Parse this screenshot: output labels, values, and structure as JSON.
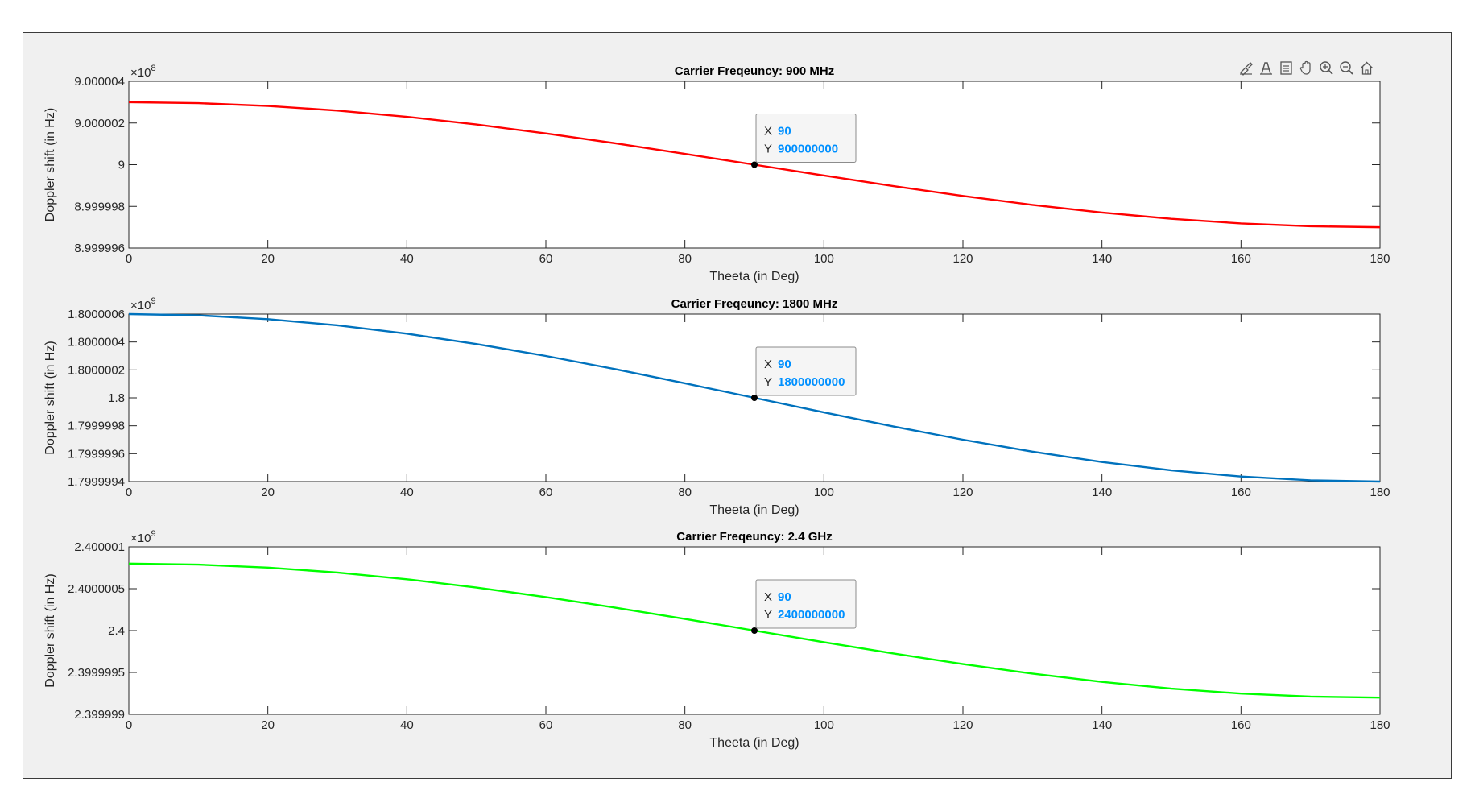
{
  "toolbar": {
    "icons": [
      "brush-icon",
      "data-tips-icon",
      "restore-view-icon",
      "pan-icon",
      "zoom-in-icon",
      "zoom-out-icon",
      "home-icon"
    ]
  },
  "colors": {
    "figure_bg": "#f0f0f0",
    "axes_bg": "#ffffff",
    "series": [
      "#ff0000",
      "#0072bd",
      "#00ff00"
    ],
    "datatip_value": "#0090ff"
  },
  "chart_data": [
    {
      "type": "line",
      "title": "Carrier Freqeuncy: 900 MHz",
      "xlabel": "Theeta (in Deg)",
      "ylabel": "Doppler shift (in Hz)",
      "exponent_label": "×10^8",
      "exponent_base": "×10",
      "exponent_power": "8",
      "xlim": [
        0,
        180
      ],
      "ylim": [
        899999600,
        900000400
      ],
      "xticks": [
        0,
        20,
        40,
        60,
        80,
        100,
        120,
        140,
        160,
        180
      ],
      "yticks": [
        899999600,
        899999800,
        900000000,
        900000200,
        900000400
      ],
      "ytick_labels": [
        "8.999996",
        "8.999998",
        "9",
        "9.000002",
        "9.000004"
      ],
      "grid": false,
      "series": [
        {
          "color": "#ff0000",
          "x": [
            0,
            10,
            20,
            30,
            40,
            50,
            60,
            70,
            80,
            90,
            100,
            110,
            120,
            130,
            140,
            150,
            160,
            170,
            180
          ],
          "y": [
            900000300,
            900000295.4,
            900000281.9,
            900000259.8,
            900000229.8,
            900000192.8,
            900000150,
            900000102.6,
            900000052.1,
            900000000,
            899999947.9,
            899999897.4,
            899999850,
            899999807.2,
            899999770.2,
            899999740.2,
            899999718.1,
            899999704.6,
            899999700
          ]
        }
      ],
      "datatip": {
        "x_label": "X",
        "x_value": "90",
        "y_label": "Y",
        "y_value": "900000000",
        "x": 90,
        "y": 900000000
      }
    },
    {
      "type": "line",
      "title": "Carrier Freqeuncy: 1800 MHz",
      "xlabel": "Theeta (in Deg)",
      "ylabel": "Doppler shift (in Hz)",
      "exponent_label": "×10^9",
      "exponent_base": "×10",
      "exponent_power": "9",
      "xlim": [
        0,
        180
      ],
      "ylim": [
        1799999400,
        1800000600
      ],
      "xticks": [
        0,
        20,
        40,
        60,
        80,
        100,
        120,
        140,
        160,
        180
      ],
      "yticks": [
        1799999400,
        1799999600,
        1799999800,
        1800000000,
        1800000200,
        1800000400,
        1800000600
      ],
      "ytick_labels": [
        "1.7999994",
        "1.7999996",
        "1.7999998",
        "1.8",
        "1.8000002",
        "1.8000004",
        "1.8000006"
      ],
      "grid": false,
      "series": [
        {
          "color": "#0072bd",
          "x": [
            0,
            10,
            20,
            30,
            40,
            50,
            60,
            70,
            80,
            90,
            100,
            110,
            120,
            130,
            140,
            150,
            160,
            170,
            180
          ],
          "y": [
            1800000600,
            1800000590.9,
            1800000563.8,
            1800000519.6,
            1800000459.6,
            1800000385.7,
            1800000300,
            1800000205.2,
            1800000104.2,
            1800000000,
            1799999895.8,
            1799999794.8,
            1799999700,
            1799999614.3,
            1799999540.4,
            1799999480.4,
            1799999436.2,
            1799999409.1,
            1799999400
          ]
        }
      ],
      "datatip": {
        "x_label": "X",
        "x_value": "90",
        "y_label": "Y",
        "y_value": "1800000000",
        "x": 90,
        "y": 1800000000
      }
    },
    {
      "type": "line",
      "title": "Carrier Freqeuncy: 2.4 GHz",
      "xlabel": "Theeta (in Deg)",
      "ylabel": "Doppler shift (in Hz)",
      "exponent_label": "×10^9",
      "exponent_base": "×10",
      "exponent_power": "9",
      "xlim": [
        0,
        180
      ],
      "ylim": [
        2399999000,
        2400001000
      ],
      "xticks": [
        0,
        20,
        40,
        60,
        80,
        100,
        120,
        140,
        160,
        180
      ],
      "yticks": [
        2399999000,
        2399999500,
        2400000000,
        2400000500,
        2400001000
      ],
      "ytick_labels": [
        "2.399999",
        "2.3999995",
        "2.4",
        "2.4000005",
        "2.400001"
      ],
      "grid": false,
      "series": [
        {
          "color": "#00ff00",
          "x": [
            0,
            10,
            20,
            30,
            40,
            50,
            60,
            70,
            80,
            90,
            100,
            110,
            120,
            130,
            140,
            150,
            160,
            170,
            180
          ],
          "y": [
            2400000800,
            2400000787.8,
            2400000751.8,
            2400000692.8,
            2400000612.8,
            2400000514.2,
            2400000400,
            2400000273.6,
            2400000138.9,
            2400000000,
            2399999861.1,
            2399999726.4,
            2399999600,
            2399999485.8,
            2399999387.2,
            2399999307.2,
            2399999248.2,
            2399999212.2,
            2399999200
          ]
        }
      ],
      "datatip": {
        "x_label": "X",
        "x_value": "90",
        "y_label": "Y",
        "y_value": "2400000000",
        "x": 90,
        "y": 2400000000
      }
    }
  ]
}
